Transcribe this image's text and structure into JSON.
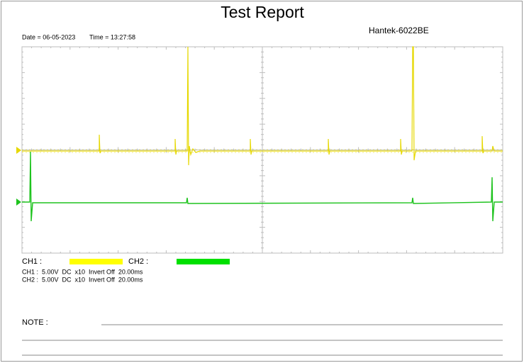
{
  "header": {
    "title": "Test Report",
    "date": "Date = 06-05-2023",
    "time": "Time = 13:27:58",
    "device": "Hantek-6022BE"
  },
  "legend": [
    {
      "label": "CH1 :"
    },
    {
      "label": "CH2 :"
    }
  ],
  "settings": [
    "CH1 :  5.00V  DC  x10  Invert Off  20.00ms",
    "CH2 :  5.00V  DC  x10  Invert Off  20.00ms"
  ],
  "note": {
    "label": "NOTE :"
  }
}
